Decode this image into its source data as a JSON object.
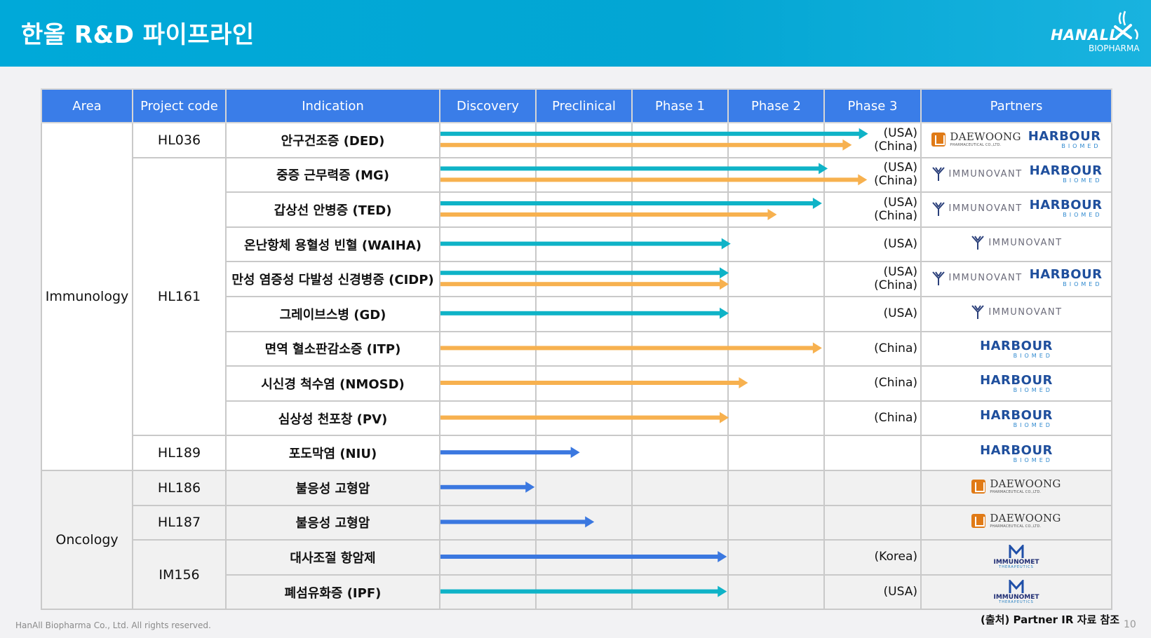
{
  "title": "한올 R&D 파이프라인",
  "logo": {
    "word": "HANALL",
    "sub": "BIOPHARMA"
  },
  "headers": [
    "Area",
    "Project  code",
    "Indication",
    "Discovery",
    "Preclinical",
    "Phase 1",
    "Phase 2",
    "Phase 3",
    "Partners"
  ],
  "stages": [
    "Discovery",
    "Preclinical",
    "Phase 1",
    "Phase 2",
    "Phase 3"
  ],
  "areas": {
    "immunology": "Immunology",
    "oncology": "Oncology"
  },
  "codes": {
    "hl036": "HL036",
    "hl161": "HL161",
    "hl189": "HL189",
    "hl186": "HL186",
    "hl187": "HL187",
    "im156": "IM156"
  },
  "rows": [
    {
      "indication": "안구건조증 (DED)",
      "region": [
        "(USA)",
        "(China)"
      ],
      "partners": [
        "daewoong",
        "harbour"
      ]
    },
    {
      "indication": "중증 근무력증 (MG)",
      "region": [
        "(USA)",
        "(China)"
      ],
      "partners": [
        "immunovant",
        "harbour"
      ]
    },
    {
      "indication": "갑상선 안병증 (TED)",
      "region": [
        "(USA)",
        "(China)"
      ],
      "partners": [
        "immunovant",
        "harbour"
      ]
    },
    {
      "indication": "온난항체 용혈성 빈혈 (WAIHA)",
      "region": [
        "(USA)"
      ],
      "partners": [
        "immunovant"
      ]
    },
    {
      "indication": "만성 염증성 다발성 신경병증 (CIDP)",
      "region": [
        "(USA)",
        "(China)"
      ],
      "partners": [
        "immunovant",
        "harbour"
      ]
    },
    {
      "indication": "그레이브스병 (GD)",
      "region": [
        "(USA)"
      ],
      "partners": [
        "immunovant"
      ]
    },
    {
      "indication": "면역 혈소판감소증 (ITP)",
      "region": [
        "(China)"
      ],
      "partners": [
        "harbour"
      ]
    },
    {
      "indication": "시신경 척수염 (NMOSD)",
      "region": [
        "(China)"
      ],
      "partners": [
        "harbour"
      ]
    },
    {
      "indication": "심상성 천포창 (PV)",
      "region": [
        "(China)"
      ],
      "partners": [
        "harbour"
      ]
    },
    {
      "indication": "포도막염 (NIU)",
      "region": [],
      "partners": [
        "harbour"
      ]
    },
    {
      "indication": "불응성 고형암",
      "region": [],
      "partners": [
        "daewoong"
      ]
    },
    {
      "indication": "불응성 고형암",
      "region": [],
      "partners": [
        "daewoong"
      ]
    },
    {
      "indication": "대사조절 항암제",
      "region": [
        "(Korea)"
      ],
      "partners": [
        "immunomet"
      ]
    },
    {
      "indication": "폐섬유화증 (IPF)",
      "region": [
        "(USA)"
      ],
      "partners": [
        "immunomet"
      ]
    }
  ],
  "progress": [
    [
      {
        "color": "teal",
        "stage": 4.45
      },
      {
        "color": "orange",
        "stage": 4.28
      }
    ],
    [
      {
        "color": "teal",
        "stage": 4.03
      },
      {
        "color": "orange",
        "stage": 4.44
      }
    ],
    [
      {
        "color": "teal",
        "stage": 3.97
      },
      {
        "color": "orange",
        "stage": 3.5
      }
    ],
    [
      {
        "color": "teal",
        "stage": 3.02
      }
    ],
    [
      {
        "color": "teal",
        "stage": 3.0
      },
      {
        "color": "orange",
        "stage": 3.0
      }
    ],
    [
      {
        "color": "teal",
        "stage": 3.0
      }
    ],
    [
      {
        "color": "orange",
        "stage": 3.97
      }
    ],
    [
      {
        "color": "orange",
        "stage": 3.2
      }
    ],
    [
      {
        "color": "orange",
        "stage": 3.0
      }
    ],
    [
      {
        "color": "blue",
        "stage": 1.45
      }
    ],
    [
      {
        "color": "blue",
        "stage": 0.98
      }
    ],
    [
      {
        "color": "blue",
        "stage": 1.6
      }
    ],
    [
      {
        "color": "blue",
        "stage": 2.98
      }
    ],
    [
      {
        "color": "teal",
        "stage": 2.98
      }
    ]
  ],
  "colors": {
    "teal": "#0fb3c7",
    "orange": "#f7b14f",
    "blue": "#3b78e0",
    "header": "#3a7de8",
    "banner": "#00a9d9"
  },
  "partner_logos": {
    "daewoong": {
      "name": "DAEWOONG",
      "sub": "PHARMACEUTICAL CO.,LTD."
    },
    "harbour": {
      "name": "HARBOUR",
      "sub": "BIOMED"
    },
    "immunovant": {
      "name": "IMMUNOVANT"
    },
    "immunomet": {
      "name": "IMMUNOMET",
      "sub": "THERAPEUTICS"
    }
  },
  "source_note": "(출처) Partner IR 자료 참조",
  "footer": "HanAll Biopharma Co., Ltd. All rights reserved.",
  "page_number": "10"
}
